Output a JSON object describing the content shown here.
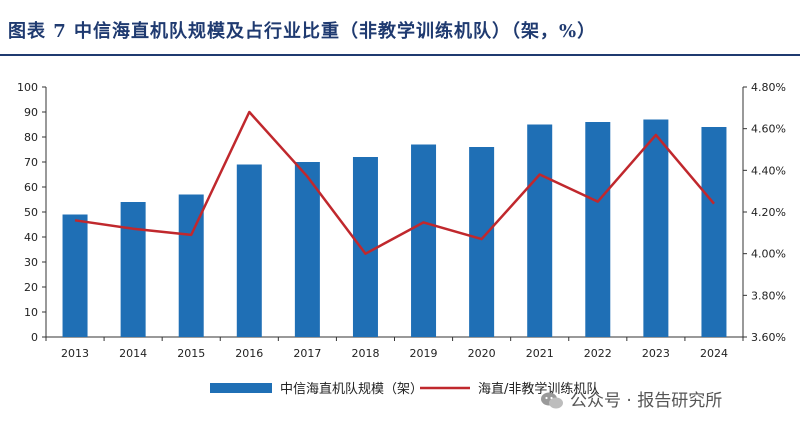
{
  "header": {
    "title": "图表 7   中信海直机队规模及占行业比重（非教学训练机队）（架，%）"
  },
  "chart_data": {
    "type": "bar",
    "categories": [
      "2013",
      "2014",
      "2015",
      "2016",
      "2017",
      "2018",
      "2019",
      "2020",
      "2021",
      "2022",
      "2023",
      "2024"
    ],
    "series": [
      {
        "name": "中信海直机队规模（架）",
        "type": "bar",
        "axis": "left",
        "color": "#1f6fb5",
        "values": [
          49,
          54,
          57,
          69,
          70,
          72,
          77,
          76,
          85,
          86,
          87,
          84
        ]
      },
      {
        "name": "海直/非教学训练机队",
        "type": "line",
        "axis": "right",
        "color": "#c0282d",
        "values": [
          4.16,
          4.12,
          4.09,
          4.68,
          4.37,
          4.0,
          4.15,
          4.07,
          4.38,
          4.25,
          4.57,
          4.24
        ]
      }
    ],
    "left_axis": {
      "ylim": [
        0,
        100
      ],
      "ticks": [
        0,
        10,
        20,
        30,
        40,
        50,
        60,
        70,
        80,
        90,
        100
      ]
    },
    "right_axis": {
      "ylim": [
        3.6,
        4.8
      ],
      "ticks": [
        3.6,
        3.8,
        4.0,
        4.2,
        4.4,
        4.6,
        4.8
      ],
      "tick_labels": [
        "3.60%",
        "3.80%",
        "4.00%",
        "4.20%",
        "4.40%",
        "4.60%",
        "4.80%"
      ]
    },
    "legend_position": "bottom",
    "grid": false
  },
  "watermark": {
    "text": "公众号 · 报告研究所"
  }
}
